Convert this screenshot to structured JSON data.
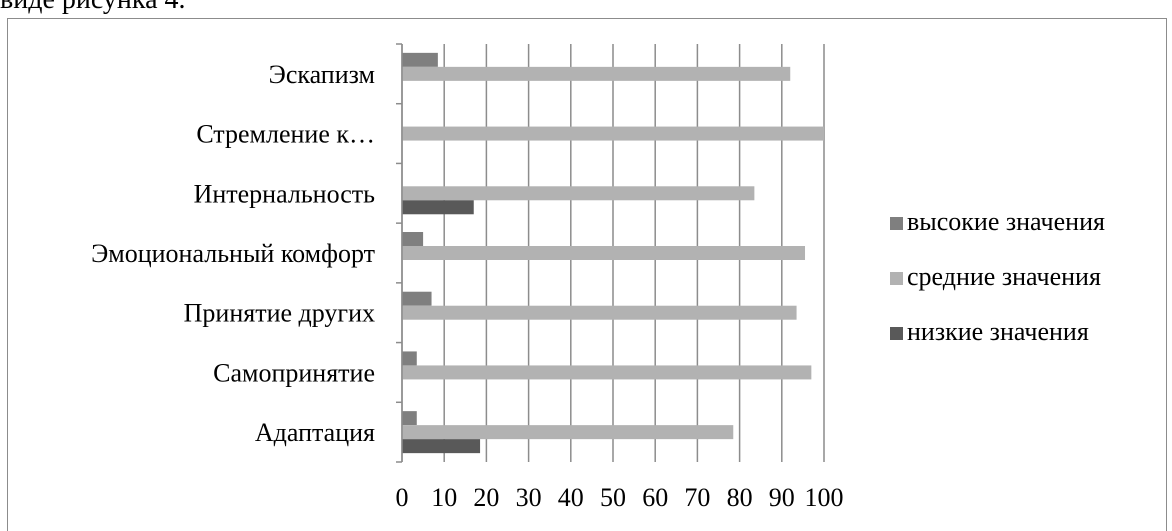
{
  "page": {
    "top_text": "виде рисунка 4."
  },
  "chart_data": {
    "type": "bar",
    "orientation": "horizontal",
    "categories": [
      "Адаптация",
      "Самопринятие",
      "Принятие других",
      "Эмоциональный комфорт",
      "Интернальность",
      "Стремление к…",
      "Эскапизм"
    ],
    "series": [
      {
        "name": "высокие значения",
        "color": "#7f7f7f",
        "values": [
          3.5,
          3.5,
          7,
          5,
          0,
          0,
          8.5
        ]
      },
      {
        "name": "средние значения",
        "color": "#b2b2b2",
        "values": [
          78.5,
          97,
          93.5,
          95.5,
          83.5,
          100,
          92
        ]
      },
      {
        "name": "низкие значения",
        "color": "#595959",
        "values": [
          18.5,
          0,
          0,
          0,
          17,
          0,
          0
        ]
      }
    ],
    "x_ticks": [
      "0",
      "10",
      "20",
      "30",
      "40",
      "50",
      "60",
      "70",
      "80",
      "90",
      "100"
    ],
    "xlim": [
      0,
      100
    ],
    "grid": true,
    "legend_position": "right"
  }
}
